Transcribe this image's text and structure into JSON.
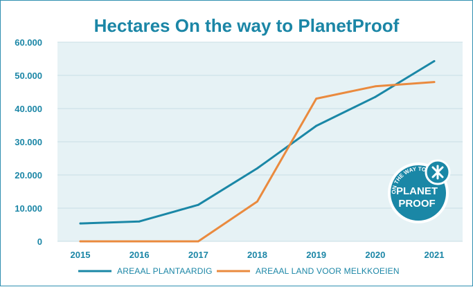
{
  "chart_data": {
    "type": "line",
    "title": "Hectares On the way to PlanetProof",
    "xlabel": "",
    "ylabel": "",
    "categories": [
      "2015",
      "2016",
      "2017",
      "2018",
      "2019",
      "2020",
      "2021"
    ],
    "y_ticks": [
      "0",
      "10.000",
      "20.000",
      "30.000",
      "40.000",
      "50.000",
      "60.000"
    ],
    "ylim": [
      0,
      60000
    ],
    "grid": "horizontal",
    "legend_position": "bottom",
    "series": [
      {
        "name": "AREAAL PLANTAARDIG",
        "color": "#1a87a6",
        "values": [
          5400,
          6000,
          11000,
          22000,
          34800,
          43500,
          54300
        ]
      },
      {
        "name": "AREAAL LAND VOOR MELKKOEIEN",
        "color": "#ea8a3e",
        "values": [
          0,
          0,
          0,
          12000,
          43000,
          46700,
          48000
        ]
      }
    ],
    "colors": {
      "title": "#1b86a6",
      "plot_background": "#e6f2f5",
      "gridline": "#c8dde5",
      "axis_labels": "#1b86a6"
    },
    "logo": {
      "text_top": "ON THE WAY TO",
      "text_main_1": "PLANET",
      "text_main_2": "PROOF",
      "color": "#1a87a6"
    }
  }
}
